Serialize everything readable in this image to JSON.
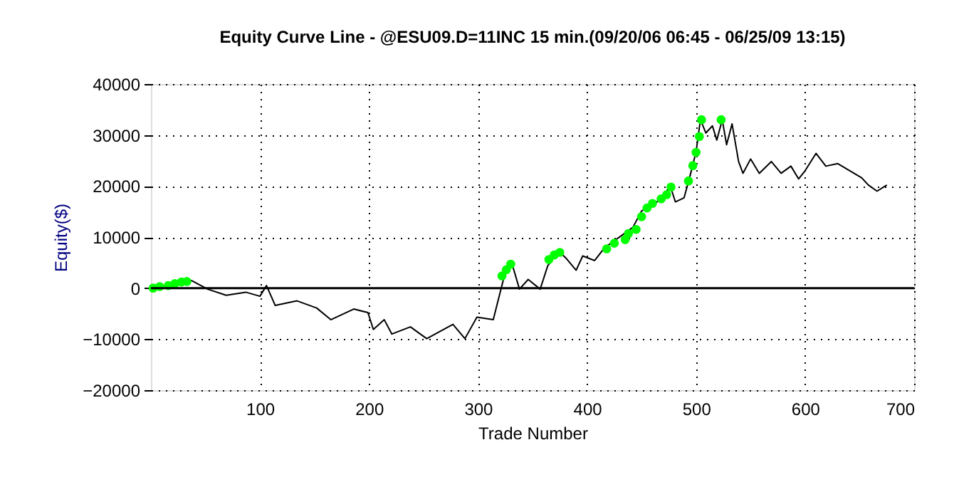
{
  "chart_data": {
    "type": "line",
    "title": "Equity Curve Line - @ESU09.D=11INC 15 min.(09/20/06 06:45 - 06/25/09 13:15)",
    "xlabel": "Trade Number",
    "ylabel": "Equity($)",
    "xlim": [
      0,
      700
    ],
    "xticks": [
      100,
      200,
      300,
      400,
      500,
      600,
      700
    ],
    "ylim": [
      -20000,
      40000
    ],
    "yticks": [
      -20000,
      -10000,
      0,
      10000,
      20000,
      30000,
      40000
    ],
    "grid": true,
    "legend": false,
    "ref_lines": [
      {
        "axis": "y",
        "value": 0,
        "color": "#000000",
        "line_style": "solid"
      }
    ],
    "series": [
      {
        "color": "#000000",
        "marker": "none",
        "line_style": "solid",
        "x": [
          2,
          37,
          52,
          69,
          87,
          100,
          106,
          114,
          134,
          152,
          165,
          186,
          199,
          204,
          214,
          221,
          238,
          247,
          253,
          277,
          288,
          299,
          314,
          320,
          325,
          331,
          338,
          346,
          357,
          364,
          374,
          381,
          390,
          396,
          407,
          416,
          433,
          442,
          450,
          464,
          470,
          476,
          481,
          489,
          494,
          500,
          504,
          509,
          515,
          519,
          524,
          528,
          533,
          539,
          543,
          550,
          558,
          569,
          578,
          587,
          594,
          600,
          610,
          619,
          630,
          641,
          652,
          658,
          666,
          675
        ],
        "values": [
          0,
          1500,
          -200,
          -1400,
          -800,
          -1600,
          500,
          -3400,
          -2500,
          -3900,
          -6200,
          -4100,
          -4800,
          -8100,
          -6200,
          -9000,
          -7600,
          -9000,
          -9900,
          -7100,
          -9900,
          -5700,
          -6200,
          -1100,
          3100,
          4900,
          -200,
          1700,
          -200,
          4400,
          7200,
          5800,
          3500,
          6300,
          5400,
          7900,
          10500,
          11900,
          15100,
          16900,
          17700,
          20200,
          16900,
          17700,
          21600,
          26700,
          33000,
          30400,
          31800,
          29000,
          33000,
          28100,
          32200,
          24800,
          22500,
          25300,
          22500,
          24800,
          22500,
          23900,
          21400,
          23000,
          26400,
          23900,
          24400,
          23000,
          21600,
          20200,
          19000,
          20200
        ]
      },
      {
        "type": "scatter",
        "color": "#00ff00",
        "marker": "circle",
        "x": [
          2,
          8,
          16,
          22,
          28,
          33,
          322,
          326,
          330,
          365,
          370,
          375,
          418,
          425,
          435,
          438,
          445,
          450,
          455,
          460,
          468,
          473,
          477,
          493,
          497,
          500,
          503,
          505,
          523
        ],
        "values": [
          0,
          300,
          500,
          900,
          1200,
          1300,
          2400,
          3600,
          4700,
          5600,
          6500,
          7000,
          7700,
          8800,
          9500,
          10700,
          11500,
          14000,
          15700,
          16600,
          17500,
          18300,
          19800,
          21000,
          24000,
          26600,
          29700,
          33000,
          33000
        ]
      }
    ]
  }
}
